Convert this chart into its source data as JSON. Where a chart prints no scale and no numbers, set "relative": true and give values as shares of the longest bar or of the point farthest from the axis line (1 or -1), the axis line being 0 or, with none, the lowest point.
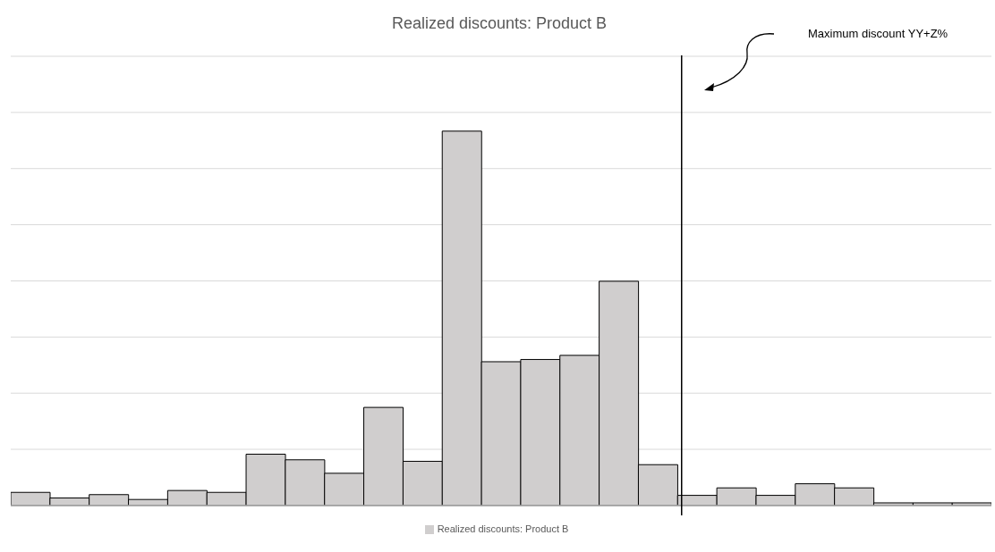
{
  "chart_data": {
    "type": "bar",
    "title": "Realized discounts: Product B",
    "relative": true,
    "grid": "y",
    "legend": "bottom",
    "categories": [
      null,
      null,
      null,
      null,
      null,
      null,
      null,
      null,
      null,
      null,
      null,
      null,
      null,
      null,
      null,
      null,
      null,
      null,
      null,
      null,
      null,
      null,
      null,
      null,
      null
    ],
    "series": [
      {
        "name": "Realized discounts: Product B",
        "color": "#d0cece",
        "values": [
          0.035,
          0.02,
          0.029,
          0.016,
          0.04,
          0.035,
          0.137,
          0.122,
          0.086,
          0.262,
          0.118,
          1,
          0.384,
          0.39,
          0.401,
          0.599,
          0.109,
          0.027,
          0.047,
          0.027,
          0.058,
          0.047,
          0.007,
          0.007,
          0.007
        ]
      }
    ],
    "annotations": [
      "Maximum discount YY+Z%"
    ]
  }
}
